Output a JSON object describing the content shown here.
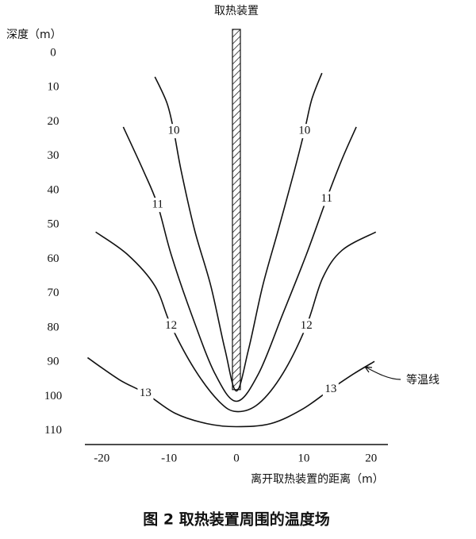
{
  "chart_data": {
    "type": "contour",
    "title": "取热装置",
    "y_label": "深度（m）",
    "x_label": "离开取热装置的距离（m）",
    "caption": "图 2 取热装置周围的温度场",
    "annotation": "等温线",
    "xlim": [
      -22.5,
      22.5
    ],
    "xticks": [
      -20,
      -10,
      0,
      10,
      20
    ],
    "ylim": [
      -6,
      114
    ],
    "yticks": [
      0,
      10,
      20,
      30,
      40,
      50,
      60,
      70,
      80,
      90,
      100,
      110
    ],
    "y_inverted": true,
    "heater_depth": 98,
    "color": "#111111",
    "series": [
      {
        "name": "10",
        "x": [
          -12.1,
          -10.3,
          -9.3,
          -8.2,
          -6.2,
          -3.8,
          -1.7,
          0,
          1.8,
          3.9,
          6.2,
          8.6,
          10.1,
          11.2,
          12.7
        ],
        "y": [
          6.9,
          14.6,
          22.7,
          34.3,
          51.6,
          67.8,
          86.3,
          98.4,
          86.3,
          67.8,
          51.6,
          34.3,
          22.7,
          13.4,
          5.8
        ]
      },
      {
        "name": "11",
        "x": [
          -16.8,
          -13.8,
          -11.7,
          -9.7,
          -6.7,
          -3.2,
          0,
          3.3,
          6.9,
          10.4,
          13.4,
          15.7,
          17.8
        ],
        "y": [
          21.5,
          34.3,
          44.2,
          58.6,
          75.9,
          93.3,
          101.4,
          93.3,
          75.9,
          58.6,
          42.4,
          30.8,
          21.5
        ]
      },
      {
        "name": "12",
        "x": [
          -20.9,
          -16.2,
          -12.1,
          -9.7,
          -6.2,
          -2.6,
          0,
          3.3,
          6.9,
          10.4,
          12.8,
          15.7,
          20.7
        ],
        "y": [
          52.1,
          58.6,
          67.8,
          79.4,
          92.1,
          101.4,
          104.4,
          102.1,
          93.3,
          79.4,
          65.5,
          57.4,
          52.1
        ]
      },
      {
        "name": "13",
        "x": [
          -22.1,
          -17.4,
          -13.5,
          -9.1,
          -4.4,
          0,
          5.1,
          9.8,
          14,
          17.5,
          20.5
        ],
        "y": [
          88.7,
          95.1,
          99.1,
          104.9,
          107.9,
          108.8,
          107.9,
          103.7,
          97.9,
          93.3,
          89.8
        ]
      }
    ]
  }
}
